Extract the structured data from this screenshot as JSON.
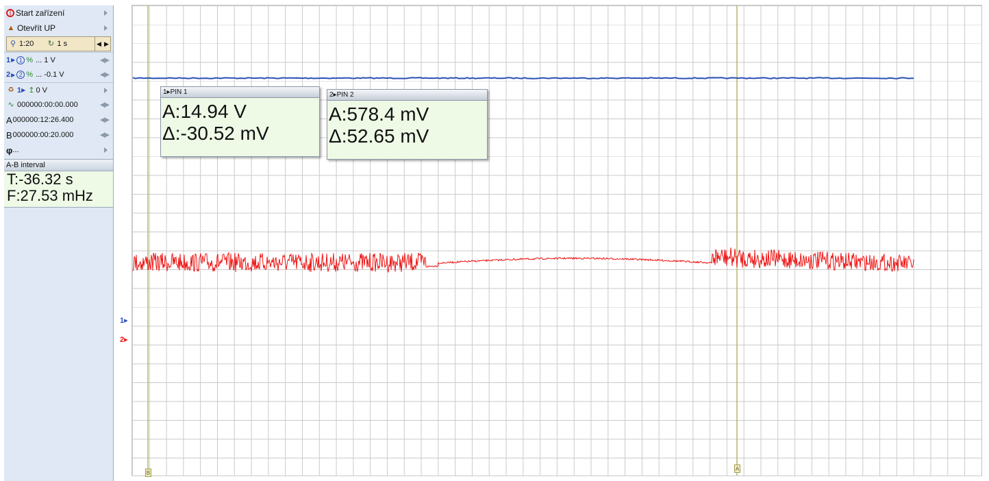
{
  "sidebar": {
    "start_device": "Start zařízení",
    "open_up": "Otevřít UP",
    "zoom": "1:20",
    "timebase": "1 s",
    "ch1": {
      "num": "1",
      "circle": "1",
      "scale": "... 1 V"
    },
    "ch2": {
      "num": "2",
      "circle": "2",
      "scale": "... -0.1 V"
    },
    "trigger": {
      "prefix": "1",
      "level": "0 V"
    },
    "time_offset": "000000:00:00.000",
    "cursor_a": {
      "label": "A",
      "value": "000000:12:26.400"
    },
    "cursor_b": {
      "label": "B",
      "value": "000000:00:20.000"
    },
    "phi": {
      "label": "φ",
      "value": "..."
    },
    "ab_interval": {
      "title": "A-B interval",
      "t": "T:-36.32 s",
      "f": "F:27.53 mHz"
    }
  },
  "readouts": [
    {
      "header": "1▸PIN 1",
      "a": "A:14.94 V",
      "delta": "Δ:-30.52 mV"
    },
    {
      "header": "2▸PIN 2",
      "a": "A:578.4 mV",
      "delta": "Δ:52.65 mV"
    }
  ],
  "markers": {
    "ch1": "1▸",
    "ch2": "2▸"
  },
  "cursor_tags": {
    "left": "B",
    "right": "A"
  },
  "colors": {
    "ch1": "#2a4fb5",
    "ch2": "#ee1111",
    "cursor": "#b5b56a"
  },
  "icons": {
    "start": "power-icon",
    "open": "user-icon",
    "zoom": "magnifier-icon",
    "timebase": "clock-icon",
    "trigger": "trigger-icon",
    "offset": "waveform-icon",
    "nav": "arrow-left-right-icon"
  }
}
